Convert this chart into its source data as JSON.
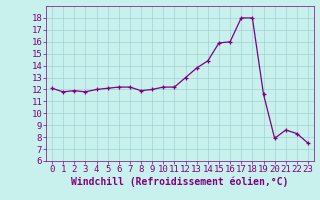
{
  "hours": [
    0,
    1,
    2,
    3,
    4,
    5,
    6,
    7,
    8,
    9,
    10,
    11,
    12,
    13,
    14,
    15,
    16,
    17,
    18,
    19,
    20,
    21,
    22,
    23
  ],
  "values": [
    12.1,
    11.8,
    11.9,
    11.8,
    12.0,
    12.1,
    12.2,
    12.2,
    11.9,
    12.0,
    12.2,
    12.2,
    13.0,
    13.8,
    14.4,
    15.9,
    16.0,
    18.0,
    18.0,
    11.6,
    7.9,
    8.6,
    8.3,
    7.5
  ],
  "line_color": "#800080",
  "bg_color": "#c8f0ec",
  "grid_color": "#99cccc",
  "xlabel": "Windchill (Refroidissement éolien,°C)",
  "xlabel_color": "#800080",
  "ylim": [
    6,
    19
  ],
  "yticks": [
    6,
    7,
    8,
    9,
    10,
    11,
    12,
    13,
    14,
    15,
    16,
    17,
    18
  ],
  "xlim": [
    -0.5,
    23.5
  ],
  "xticks": [
    0,
    1,
    2,
    3,
    4,
    5,
    6,
    7,
    8,
    9,
    10,
    11,
    12,
    13,
    14,
    15,
    16,
    17,
    18,
    19,
    20,
    21,
    22,
    23
  ],
  "tick_color": "#800080",
  "tick_fontsize": 6.5,
  "xlabel_fontsize": 7.0
}
